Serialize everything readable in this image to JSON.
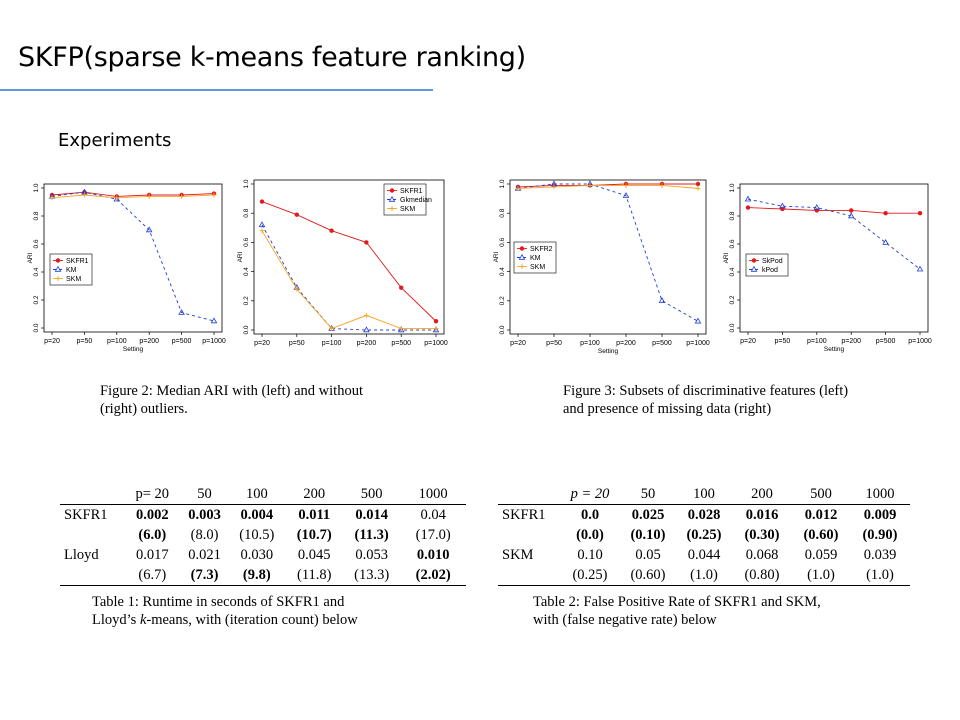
{
  "slide": {
    "title": "SKFP(sparse k-means feature ranking)",
    "subtitle": "Experiments"
  },
  "captions": {
    "fig2_line1": "Figure 2:  Median ARI with (left) and without",
    "fig2_line2": "(right) outliers.",
    "fig3_line1": "Figure 3: Subsets of discriminative features (left)",
    "fig3_line2": "and presence of missing data (right)",
    "tab1_line1": "Table 1:  Runtime in seconds of SKFR1 and",
    "tab1_line2a": "Lloyd’s ",
    "tab1_line2b": "k",
    "tab1_line2c": "-means, with (iteration count) below",
    "tab2_line1": "Table 2: False Positive Rate of SKFR1 and SKM,",
    "tab2_line2": "with (false negative rate) below"
  },
  "colors": {
    "red": "#e31a1c",
    "blue": "#1f3fd6",
    "orange": "#f5a623",
    "accent": "#5b9bd5"
  },
  "chart_data": [
    {
      "type": "line",
      "categories": [
        "p=20",
        "p=50",
        "p=100",
        "p=200",
        "p=500",
        "p=1000"
      ],
      "xlabel": "Setting",
      "ylabel": "ARI",
      "ylim": [
        0,
        1.0
      ],
      "yticks": [
        "0.0",
        "0.2",
        "0.4",
        "0.6",
        "0.8",
        "1.0"
      ],
      "legend_position": "middle-left",
      "series": [
        {
          "name": "SKFR1",
          "color": "red",
          "marker": "circle",
          "dash": "",
          "values": [
            0.95,
            0.97,
            0.94,
            0.95,
            0.95,
            0.96
          ]
        },
        {
          "name": "KM",
          "color": "blue",
          "marker": "triangle",
          "dash": "3,3",
          "values": [
            0.94,
            0.97,
            0.92,
            0.7,
            0.11,
            0.05
          ]
        },
        {
          "name": "SKM",
          "color": "orange",
          "marker": "plus",
          "dash": "",
          "values": [
            0.93,
            0.95,
            0.93,
            0.94,
            0.94,
            0.95
          ]
        }
      ]
    },
    {
      "type": "line",
      "categories": [
        "p=20",
        "p=50",
        "p=100",
        "p=200",
        "p=500",
        "p=1000"
      ],
      "xlabel": "",
      "ylabel": "ARI",
      "ylim": [
        0,
        1.0
      ],
      "yticks": [
        "0.0",
        "0.2",
        "0.4",
        "0.6",
        "0.8",
        "1.0"
      ],
      "legend_position": "top-right",
      "series": [
        {
          "name": "SKFR1",
          "color": "red",
          "marker": "circle",
          "dash": "",
          "values": [
            0.88,
            0.79,
            0.68,
            0.6,
            0.29,
            0.06
          ]
        },
        {
          "name": "Gkmedian",
          "color": "blue",
          "marker": "triangle",
          "dash": "3,3",
          "values": [
            0.72,
            0.29,
            0.01,
            0.0,
            0.0,
            0.0
          ]
        },
        {
          "name": "SKM",
          "color": "orange",
          "marker": "plus",
          "dash": "",
          "values": [
            0.68,
            0.28,
            0.01,
            0.1,
            0.01,
            0.01
          ]
        }
      ]
    },
    {
      "type": "line",
      "categories": [
        "p=20",
        "p=50",
        "p=100",
        "p=200",
        "p=500",
        "p=1000"
      ],
      "xlabel": "Setting",
      "ylabel": "ARI",
      "ylim": [
        0,
        1.0
      ],
      "yticks": [
        "0.0",
        "0.2",
        "0.4",
        "0.6",
        "0.8",
        "1.0"
      ],
      "legend_position": "middle-left",
      "series": [
        {
          "name": "SKFR2",
          "color": "red",
          "marker": "circle",
          "dash": "",
          "values": [
            0.98,
            0.99,
            0.99,
            1.0,
            1.0,
            1.0
          ]
        },
        {
          "name": "KM",
          "color": "blue",
          "marker": "triangle",
          "dash": "3,3",
          "values": [
            0.97,
            1.0,
            1.0,
            0.92,
            0.2,
            0.06
          ]
        },
        {
          "name": "SKM",
          "color": "orange",
          "marker": "plus",
          "dash": "",
          "values": [
            0.97,
            0.98,
            0.99,
            0.99,
            0.99,
            0.97
          ]
        }
      ]
    },
    {
      "type": "line",
      "categories": [
        "p=20",
        "p=50",
        "p=100",
        "p=200",
        "p=500",
        "p=1000"
      ],
      "xlabel": "Setting",
      "ylabel": "ARI",
      "ylim": [
        0,
        1.0
      ],
      "yticks": [
        "0.0",
        "0.2",
        "0.4",
        "0.6",
        "0.8",
        "1.0"
      ],
      "legend_position": "middle-left",
      "series": [
        {
          "name": "SkPod",
          "color": "red",
          "marker": "circle",
          "dash": "",
          "values": [
            0.86,
            0.85,
            0.84,
            0.84,
            0.82,
            0.82
          ]
        },
        {
          "name": "kPod",
          "color": "blue",
          "marker": "triangle",
          "dash": "3,3",
          "values": [
            0.92,
            0.87,
            0.86,
            0.8,
            0.61,
            0.42
          ]
        }
      ]
    }
  ],
  "tables": {
    "t1": {
      "header": [
        "",
        "p= 20",
        "50",
        "100",
        "200",
        "500",
        "1000"
      ],
      "rows": [
        {
          "label": "SKFR1",
          "cells": [
            "0.002",
            "0.003",
            "0.004",
            "0.011",
            "0.014",
            "0.04"
          ],
          "bold": [
            true,
            true,
            true,
            true,
            true,
            false
          ]
        },
        {
          "label": "",
          "cells": [
            "(6.0)",
            "(8.0)",
            "(10.5)",
            "(10.7)",
            "(11.3)",
            "(17.0)"
          ],
          "bold": [
            true,
            false,
            false,
            true,
            true,
            false
          ]
        },
        {
          "label": "Lloyd",
          "cells": [
            "0.017",
            "0.021",
            "0.030",
            "0.045",
            "0.053",
            "0.010"
          ],
          "bold": [
            false,
            false,
            false,
            false,
            false,
            true
          ]
        },
        {
          "label": "",
          "cells": [
            "(6.7)",
            "(7.3)",
            "(9.8)",
            "(11.8)",
            "(13.3)",
            "(2.02)"
          ],
          "bold": [
            false,
            true,
            true,
            false,
            false,
            true
          ]
        }
      ]
    },
    "t2": {
      "header": [
        "",
        "p = 20",
        "50",
        "100",
        "200",
        "500",
        "1000"
      ],
      "rows": [
        {
          "label": "SKFR1",
          "cells": [
            "0.0",
            "0.025",
            "0.028",
            "0.016",
            "0.012",
            "0.009"
          ],
          "bold": [
            true,
            true,
            true,
            true,
            true,
            true
          ]
        },
        {
          "label": "",
          "cells": [
            "(0.0)",
            "(0.10)",
            "(0.25)",
            "(0.30)",
            "(0.60)",
            "(0.90)"
          ],
          "bold": [
            true,
            true,
            true,
            true,
            true,
            true
          ]
        },
        {
          "label": "SKM",
          "cells": [
            "0.10",
            "0.05",
            "0.044",
            "0.068",
            "0.059",
            "0.039"
          ],
          "bold": [
            false,
            false,
            false,
            false,
            false,
            false
          ]
        },
        {
          "label": "",
          "cells": [
            "(0.25)",
            "(0.60)",
            "(1.0)",
            "(0.80)",
            "(1.0)",
            "(1.0)"
          ],
          "bold": [
            false,
            false,
            false,
            false,
            false,
            false
          ]
        }
      ]
    }
  }
}
